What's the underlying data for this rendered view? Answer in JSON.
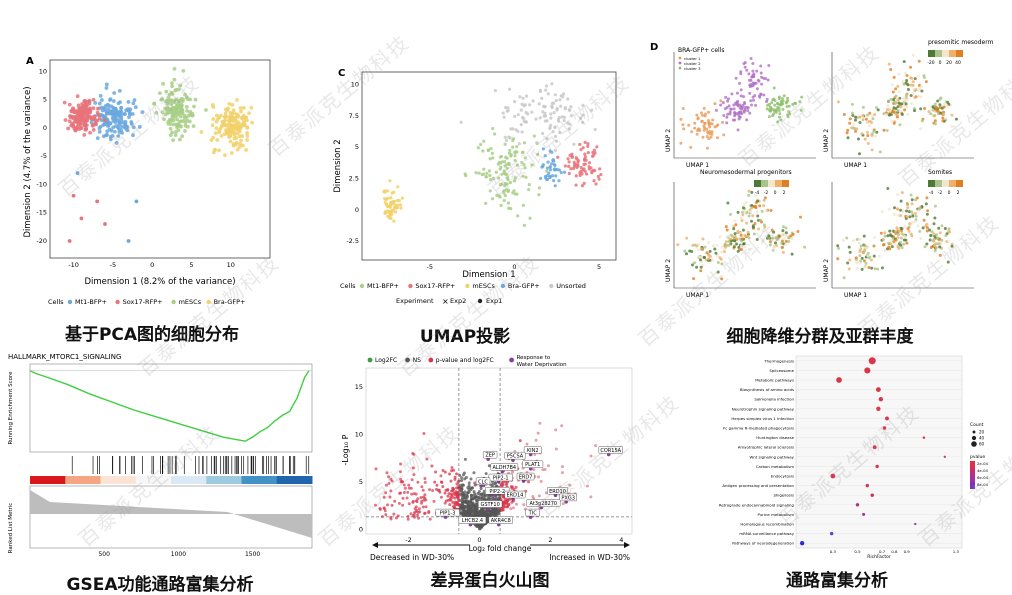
{
  "watermark": "百泰派克生物科技",
  "charts": [
    {
      "type": "scatter",
      "panel_label": "A",
      "caption": "基于PCA图的细胞分布",
      "xlabel": "Dimension 1 (8.2% of the variance)",
      "ylabel": "Dimension 2 (4.7% of the variance)",
      "xlim": [
        -13,
        15
      ],
      "ylim": [
        -23,
        12
      ],
      "xticks": [
        -10,
        -5,
        0,
        5,
        10
      ],
      "yticks": [
        10,
        5,
        0,
        -5,
        -10,
        -15,
        -20
      ],
      "legend_title": "Cells",
      "series": [
        {
          "name": "Mt1-BFP+",
          "color": "#6aa8de",
          "center": [
            -5,
            2
          ],
          "spread": [
            2.2,
            3.5
          ],
          "n": 160,
          "seed": 11
        },
        {
          "name": "Sox17-RFP+",
          "color": "#e8737a",
          "center": [
            -9,
            2
          ],
          "spread": [
            1.8,
            2.5
          ],
          "n": 170,
          "seed": 12
        },
        {
          "name": "mESCs",
          "color": "#a8cf86",
          "center": [
            3,
            3
          ],
          "spread": [
            2.0,
            3.8
          ],
          "n": 150,
          "seed": 13
        },
        {
          "name": "Bra-GFP+",
          "color": "#f2d168",
          "center": [
            10,
            0
          ],
          "spread": [
            2.4,
            3.5
          ],
          "n": 150,
          "seed": 14
        }
      ],
      "outliers": [
        {
          "x": -10,
          "y": -12,
          "color": "#e8737a"
        },
        {
          "x": -9,
          "y": -16,
          "color": "#e8737a"
        },
        {
          "x": -7,
          "y": -13,
          "color": "#e8737a"
        },
        {
          "x": -6,
          "y": -17,
          "color": "#e8737a"
        },
        {
          "x": -10.5,
          "y": -20,
          "color": "#e8737a"
        },
        {
          "x": -9.5,
          "y": -8,
          "color": "#6aa8de"
        },
        {
          "x": -3,
          "y": -20,
          "color": "#6aa8de"
        },
        {
          "x": -2,
          "y": -13,
          "color": "#6aa8de"
        }
      ]
    },
    {
      "type": "scatter",
      "panel_label": "C",
      "caption": "UMAP投影",
      "xlabel": "Dimension 1",
      "ylabel": "Dimension 2",
      "xlim": [
        -9,
        6
      ],
      "ylim": [
        -4,
        11
      ],
      "xticks": [
        -5,
        0,
        5
      ],
      "yticks": [
        10,
        7.5,
        5,
        2.5,
        0,
        -2.5
      ],
      "legend_title": "Cells",
      "legend2_title": "Experiment",
      "legend2": [
        "Exp2",
        "Exp1"
      ],
      "series": [
        {
          "name": "Mt1-BFP+",
          "color": "#a8cf86",
          "center": [
            -0.5,
            3
          ],
          "spread": [
            1.6,
            2.5
          ],
          "n": 120,
          "seed": 21
        },
        {
          "name": "Sox17-RFP+",
          "color": "#e8737a",
          "center": [
            4,
            3.5
          ],
          "spread": [
            0.9,
            1.4
          ],
          "n": 70,
          "seed": 22
        },
        {
          "name": "mESCs",
          "color": "#f2d168",
          "center": [
            -7.2,
            0.5
          ],
          "spread": [
            0.5,
            1.2
          ],
          "n": 60,
          "seed": 23
        },
        {
          "name": "Bra-GFP+",
          "color": "#6aa8de",
          "center": [
            2.2,
            3.2
          ],
          "spread": [
            0.6,
            1.0
          ],
          "n": 40,
          "seed": 24
        },
        {
          "name": "Unsorted",
          "color": "#c9c9c9",
          "center": [
            1.5,
            7.5
          ],
          "spread": [
            2.2,
            1.8
          ],
          "n": 110,
          "seed": 25
        }
      ]
    },
    {
      "type": "scatter",
      "panel_label": "D",
      "caption": "细胞降维分群及亚群丰度",
      "xlabel": "UMAP 1",
      "ylabel": "UMAP 2",
      "subpanels": [
        {
          "title": "BRA-GFP+ cells",
          "legend": [
            "cluster 1",
            "cluster 2",
            "cluster 3"
          ],
          "scale": []
        },
        {
          "title": "presomitic mesoderm",
          "legend": [],
          "scale": [
            "-20",
            "0",
            "20",
            "40"
          ]
        },
        {
          "title": "Neuromesodermal progenitors",
          "legend": [],
          "scale": [
            "-4",
            "-2",
            "0",
            "2"
          ]
        },
        {
          "title": "Somites",
          "legend": [],
          "scale": [
            "-4",
            "-2",
            "0",
            "2"
          ]
        }
      ],
      "cluster_colors": [
        "#e89a57",
        "#b271c6",
        "#8cbf6a"
      ]
    },
    {
      "type": "line",
      "caption": "GSEA功能通路富集分析",
      "title": "HALLMARK_MTORC1_SIGNALING",
      "ylabel_top": "Running Enrichment Score",
      "ylabel_bottom": "Ranked List Metric",
      "xticks": [
        500,
        1000,
        1500
      ],
      "xlim": [
        0,
        1900
      ],
      "ylim": [
        -0.6,
        0.05
      ],
      "series": [
        {
          "name": "Running ES",
          "color": "#3fcf3f",
          "x": [
            0,
            40,
            120,
            250,
            400,
            550,
            700,
            850,
            1000,
            1150,
            1300,
            1400,
            1450,
            1500,
            1550,
            1600,
            1650,
            1700,
            1750,
            1800,
            1850,
            1880
          ],
          "y": [
            0,
            -0.02,
            -0.05,
            -0.1,
            -0.17,
            -0.23,
            -0.29,
            -0.34,
            -0.39,
            -0.44,
            -0.49,
            -0.51,
            -0.52,
            -0.49,
            -0.45,
            -0.42,
            -0.37,
            -0.33,
            -0.3,
            -0.2,
            -0.05,
            0
          ]
        }
      ]
    },
    {
      "type": "scatter",
      "caption": "差异蛋白火山图",
      "xlabel": "Log₂ fold change",
      "ylabel": "-Log₁₀ P",
      "xlim": [
        -3.2,
        4.3
      ],
      "ylim": [
        -0.5,
        17
      ],
      "xticks": [
        -2,
        0,
        2,
        4
      ],
      "yticks": [
        0,
        5,
        10,
        15
      ],
      "legend": [
        {
          "name": "Log2FC",
          "color": "#3f9a3f"
        },
        {
          "name": "NS",
          "color": "#555555"
        },
        {
          "name": "p-value and log2FC",
          "color": "#d9364b"
        },
        {
          "name": "Response to Water Deprivation",
          "color": "#8a3f9a"
        }
      ],
      "arrow_left": "Decreased in WD-30%",
      "arrow_right": "Increased in WD-30%",
      "labels": [
        {
          "text": "COR15A",
          "x": 3.7,
          "y": 8.2
        },
        {
          "text": "KIN2",
          "x": 1.5,
          "y": 8.2
        },
        {
          "text": "P5CSA",
          "x": 1.0,
          "y": 7.6
        },
        {
          "text": "ZEP",
          "x": 0.3,
          "y": 7.7
        },
        {
          "text": "PLAT1",
          "x": 1.5,
          "y": 6.7
        },
        {
          "text": "ALDH7B4",
          "x": 0.7,
          "y": 6.4
        },
        {
          "text": "ERD7",
          "x": 1.3,
          "y": 5.4
        },
        {
          "text": "PIP2-1",
          "x": 0.6,
          "y": 5.3
        },
        {
          "text": "CLC",
          "x": 0.1,
          "y": 4.9
        },
        {
          "text": "ERD10",
          "x": 2.2,
          "y": 3.9
        },
        {
          "text": "PIP2-2",
          "x": 0.5,
          "y": 3.9
        },
        {
          "text": "ERD14",
          "x": 1.0,
          "y": 3.5
        },
        {
          "text": "PXG3",
          "x": 2.5,
          "y": 3.2
        },
        {
          "text": "GSTF10",
          "x": 0.3,
          "y": 2.5
        },
        {
          "text": "At3g28270",
          "x": 1.8,
          "y": 2.6
        },
        {
          "text": "PIP1-3",
          "x": -0.9,
          "y": 1.6
        },
        {
          "text": "TIC",
          "x": 1.5,
          "y": 1.6
        },
        {
          "text": "LHCB2.4",
          "x": -0.2,
          "y": 0.8
        },
        {
          "text": "AKR4C8",
          "x": 0.6,
          "y": 0.8
        }
      ]
    },
    {
      "type": "scatter",
      "caption": "通路富集分析",
      "xlabel": "RichFactor",
      "xlim": [
        0.0,
        1.35
      ],
      "xticks": [
        0.3,
        0.5,
        0.7,
        0.8,
        0.9,
        1.3
      ],
      "size_legend_title": "Count",
      "size_legend": [
        "20",
        "40",
        "60"
      ],
      "color_legend_title": "pvalue",
      "color_legend": [
        "2e-04",
        "4e-04",
        "6e-04",
        "8e-04"
      ],
      "categories": [
        "Thermogenesis",
        "Spliceosome",
        "Metabolic pathways",
        "Biosynthesis of amino acids",
        "Salmonella infection",
        "Neurotrophin signaling pathway",
        "Herpes simplex virus 1 infection",
        "Fc gamma R-mediated phagocytosis",
        "Huntington disease",
        "Amyotrophic lateral sclerosis",
        "Wnt signaling pathway",
        "Carbon metabolism",
        "Endocytosis",
        "Antigen processing and presentation",
        "Shigellosis",
        "Retrograde endocannabinoid signaling",
        "Purine metabolism",
        "Homologous recombination",
        "mRNA surveillance pathway",
        "Pathways of neurodegeneration"
      ],
      "values": [
        0.62,
        0.58,
        0.35,
        0.67,
        0.69,
        0.67,
        0.74,
        0.72,
        1.04,
        0.64,
        1.21,
        0.66,
        0.3,
        0.58,
        0.62,
        0.5,
        0.55,
        0.97,
        0.29,
        0.05
      ],
      "counts": [
        60,
        50,
        45,
        35,
        30,
        30,
        25,
        20,
        10,
        25,
        8,
        20,
        35,
        20,
        20,
        20,
        15,
        8,
        20,
        30
      ],
      "pcolors": [
        "#d9364b",
        "#d9364b",
        "#d9364b",
        "#d9364b",
        "#d9364b",
        "#d9364b",
        "#d9364b",
        "#d9364b",
        "#d9364b",
        "#d9364b",
        "#d9364b",
        "#d9364b",
        "#d9364b",
        "#d9364b",
        "#c92f5f",
        "#b02f7f",
        "#a23096",
        "#9b33a6",
        "#6b3fc8",
        "#2b2bd8"
      ]
    }
  ]
}
